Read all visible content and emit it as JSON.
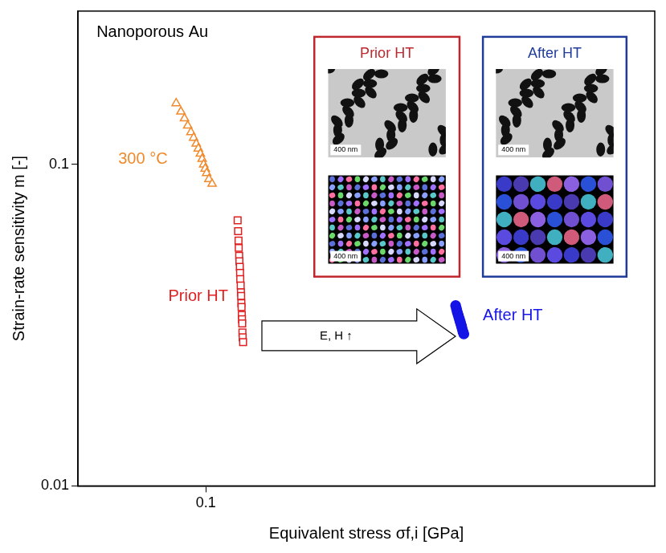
{
  "chart_data": {
    "type": "scatter",
    "title": "Nanoporous Au",
    "x_label": "Equivalent stress σf,i [GPa]",
    "y_label": "Strain-rate sensitivity m [-]",
    "log": true,
    "grid": false,
    "xlim": [
      0.06,
      0.6
    ],
    "ylim": [
      0.01,
      0.3
    ],
    "xticks": [
      0.1
    ],
    "yticks": [
      0.01,
      0.1
    ],
    "series": [
      {
        "name": "300 °C",
        "color": "#f08a2c",
        "marker": "open_triangle",
        "x": [
          0.0888,
          0.0905,
          0.0918,
          0.093,
          0.0942,
          0.0952,
          0.0962,
          0.097,
          0.0978,
          0.0985,
          0.0991,
          0.0997,
          0.1003,
          0.1012,
          0.1025
        ],
        "values": [
          0.155,
          0.146,
          0.139,
          0.132,
          0.126,
          0.121,
          0.116,
          0.112,
          0.108,
          0.104,
          0.1,
          0.097,
          0.094,
          0.09,
          0.087
        ]
      },
      {
        "name": "Prior HT",
        "color": "#e02020",
        "marker": "open_square",
        "x": [
          0.1135,
          0.1137,
          0.1139,
          0.114,
          0.1142,
          0.1143,
          0.1145,
          0.1146,
          0.1147,
          0.1149,
          0.115,
          0.1151,
          0.1152,
          0.1153,
          0.1154,
          0.1155,
          0.1156,
          0.1157,
          0.1158,
          0.116
        ],
        "values": [
          0.067,
          0.062,
          0.058,
          0.055,
          0.052,
          0.05,
          0.048,
          0.046,
          0.044,
          0.042,
          0.04,
          0.039,
          0.037,
          0.036,
          0.034,
          0.033,
          0.032,
          0.03,
          0.029,
          0.028
        ]
      },
      {
        "name": "After HT",
        "color": "#1414e6",
        "marker": "filled_circle",
        "x": [
          0.271,
          0.2718,
          0.2726,
          0.2734,
          0.2742,
          0.275,
          0.2758,
          0.2766,
          0.2774,
          0.2782,
          0.279,
          0.28
        ],
        "values": [
          0.0364,
          0.0356,
          0.0349,
          0.0343,
          0.0337,
          0.0331,
          0.0325,
          0.032,
          0.0314,
          0.0308,
          0.0302,
          0.0297
        ]
      }
    ],
    "annotations": [
      {
        "text": "E, H ↑"
      }
    ],
    "insets": [
      {
        "title": "Prior HT",
        "color": "#c0272d",
        "scale_bars": [
          "400 nm",
          "400 nm"
        ]
      },
      {
        "title": "After HT",
        "color": "#1f3c9a",
        "scale_bars": [
          "400 nm",
          "400 nm"
        ]
      }
    ]
  }
}
